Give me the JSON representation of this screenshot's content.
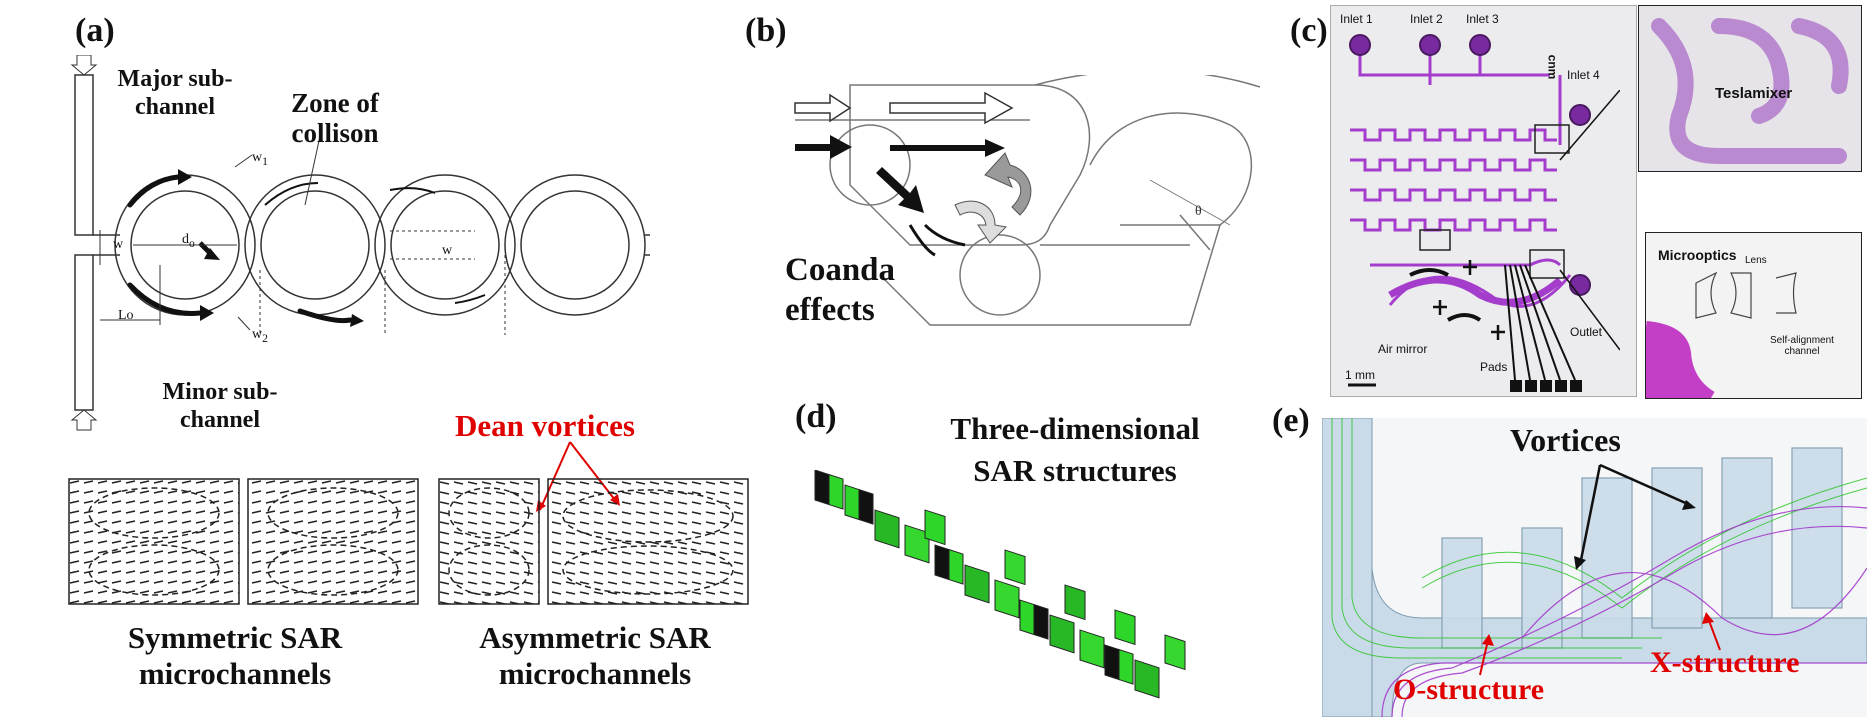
{
  "panel_a": {
    "label": "(a)",
    "major_sub": "Major sub-\nchannel",
    "zone": "Zone of\ncollison",
    "minor_sub": "Minor sub-\nchannel",
    "w1": "w",
    "w1_sub": "1",
    "w2": "w",
    "w2_sub": "2",
    "w": "w",
    "w_right": "w",
    "d0": "d",
    "d0_sub": "o",
    "lo": "Lo",
    "dean": "Dean vortices",
    "sym": "Symmetric SAR\nmicrochannels",
    "asym": "Asymmetric SAR\nmicrochannels"
  },
  "panel_b": {
    "label": "(b)",
    "coanda": "Coanda\neffects",
    "theta": "θ"
  },
  "panel_c": {
    "label": "(c)",
    "inlet1": "Inlet 1",
    "inlet2": "Inlet 2",
    "inlet3": "Inlet 3",
    "inlet4": "Inlet 4",
    "outlet": "Outlet",
    "air_mirror": "Air mirror",
    "pads": "Pads",
    "scale": "1 mm",
    "teslamixer": "Teslamixer",
    "microoptics": "Microoptics",
    "lens": "Lens",
    "self_align": "Self-alignment\nchannel",
    "logo": "cnm"
  },
  "panel_d": {
    "label": "(d)",
    "title": "Three-dimensional\nSAR structures"
  },
  "panel_e": {
    "label": "(e)",
    "vortices": "Vortices",
    "o_struct": "O-structure",
    "x_struct": "X-structure"
  },
  "colors": {
    "red": "#e00000",
    "purple": "#a43ccc",
    "green": "#22c41c",
    "channel_blue": "#c9dbe8"
  }
}
